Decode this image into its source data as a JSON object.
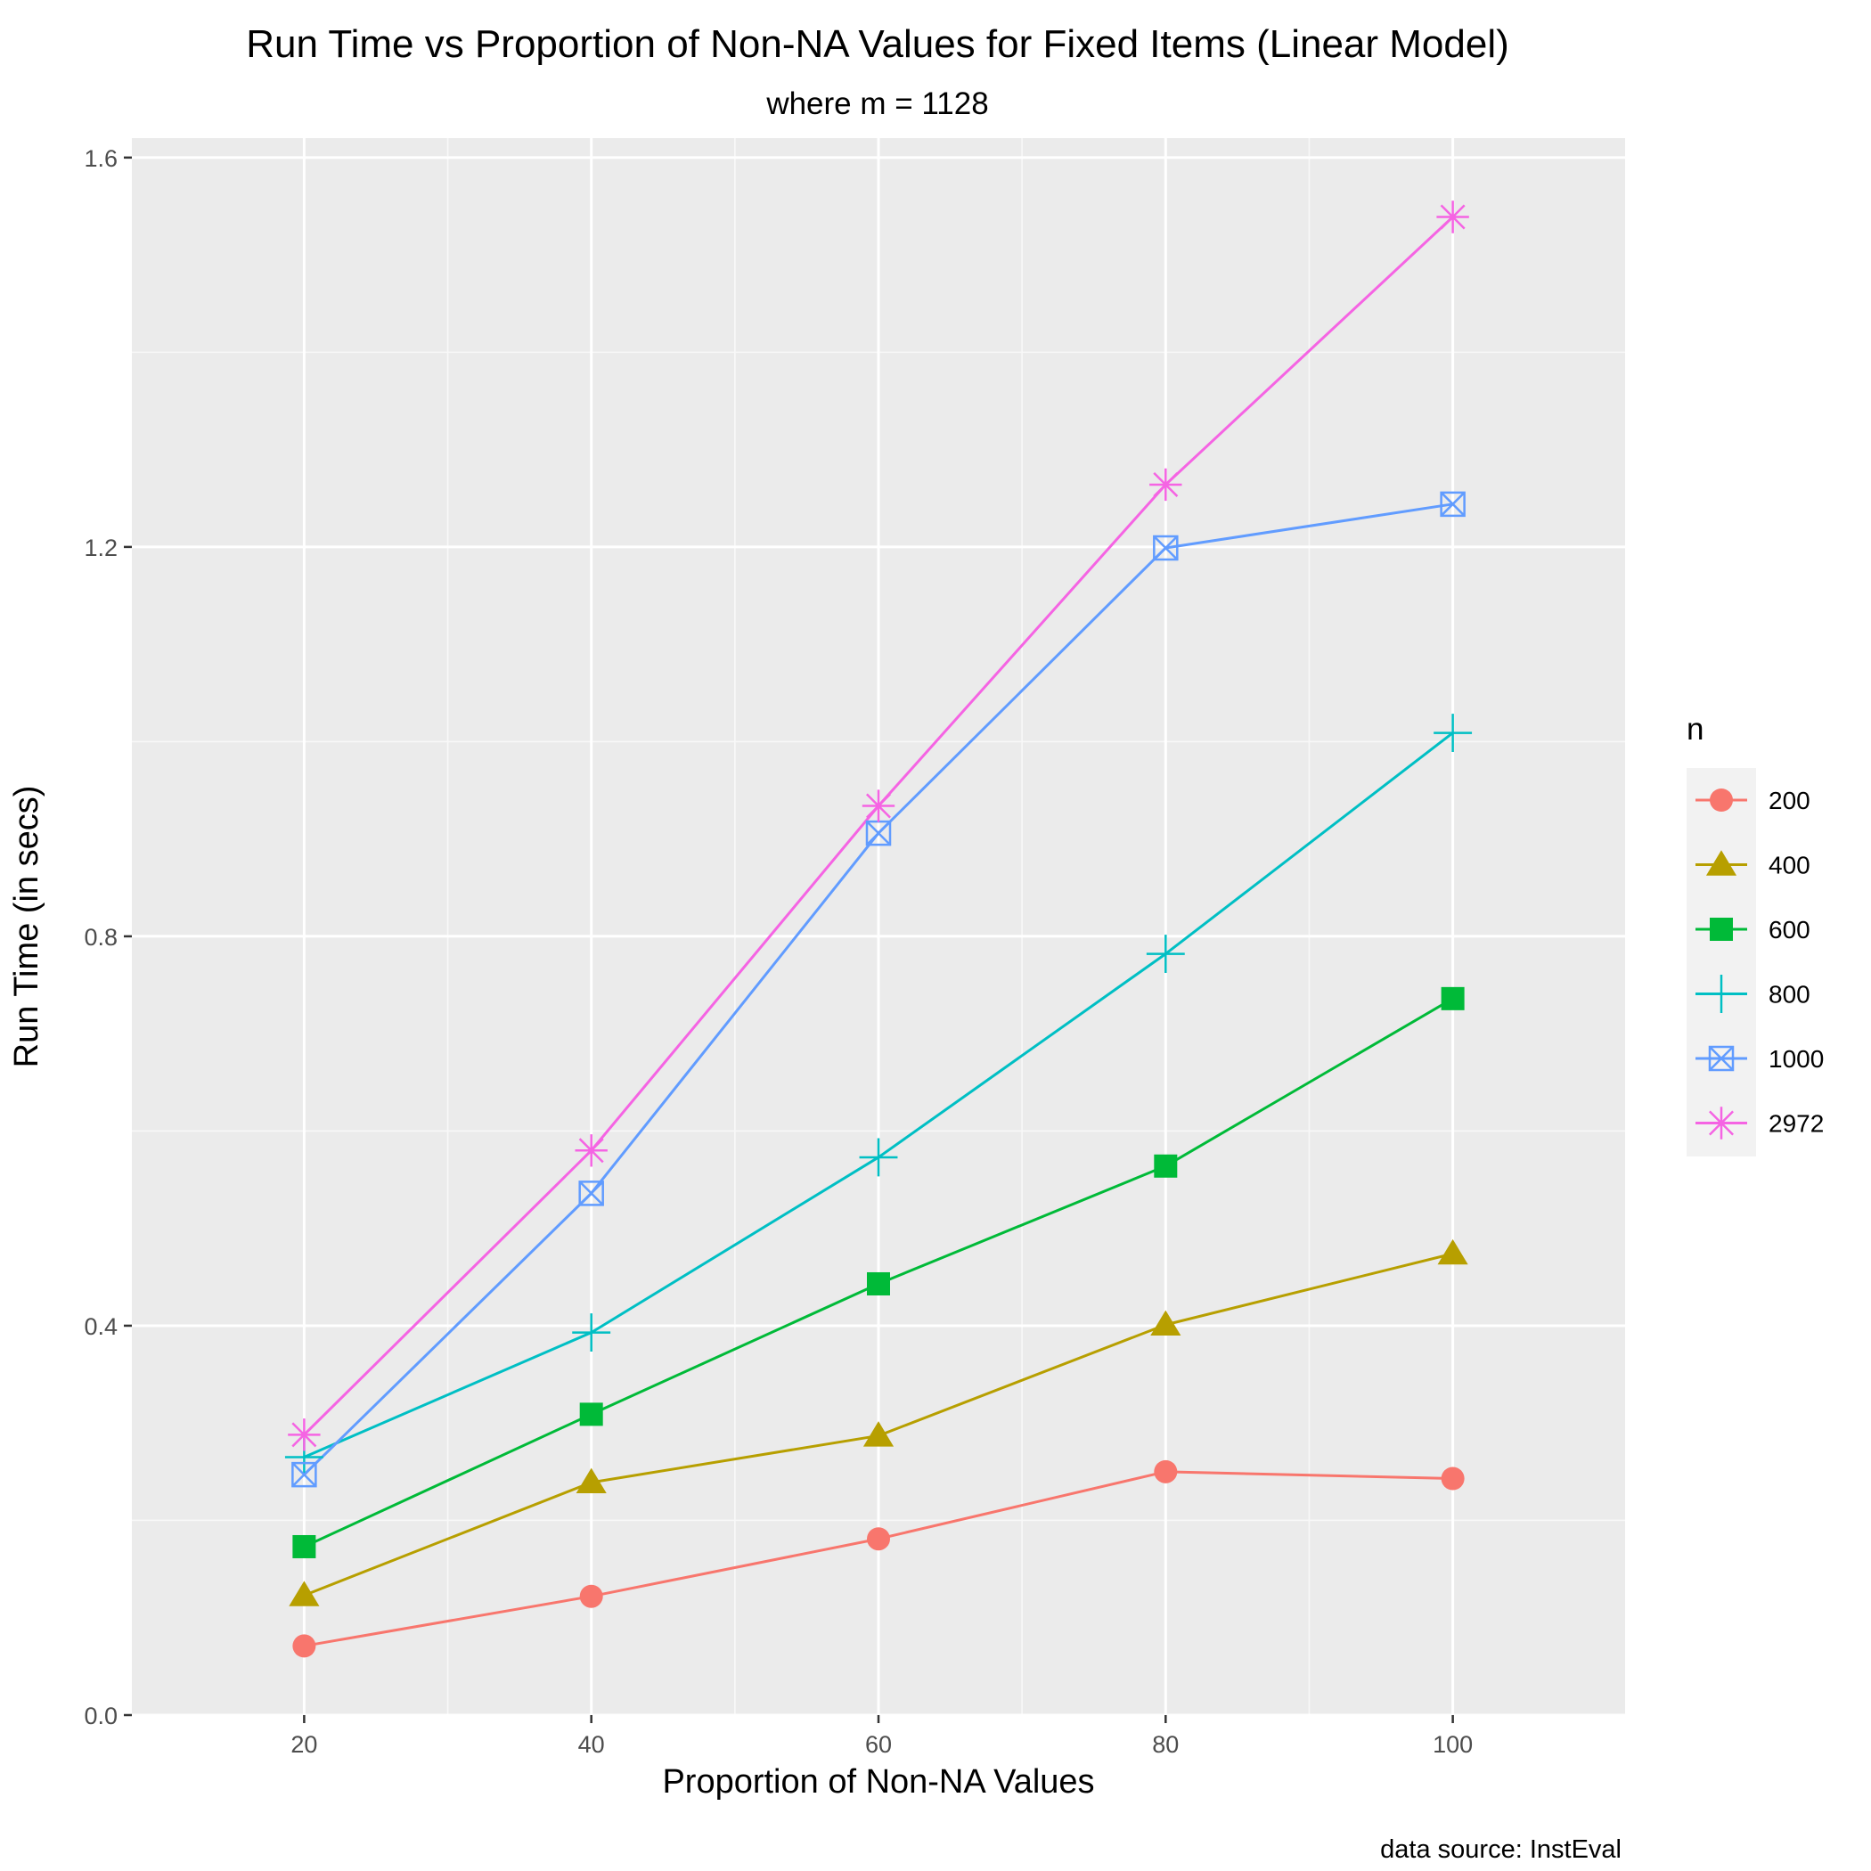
{
  "chart_data": {
    "type": "line",
    "title": "Run Time vs Proportion of Non-NA Values for Fixed Items (Linear Model)",
    "subtitle": "where m = 1128",
    "xlabel": "Proportion of Non-NA Values",
    "ylabel": "Run Time (in secs)",
    "caption": "data source: InstEval",
    "xlim": [
      8,
      112
    ],
    "ylim": [
      0,
      1.62
    ],
    "x_ticks": [
      20,
      40,
      60,
      80,
      100
    ],
    "x_tick_labels": [
      "20",
      "40",
      "60",
      "80",
      "100"
    ],
    "y_ticks": [
      0.0,
      0.4,
      0.8,
      1.2,
      1.6
    ],
    "y_tick_labels": [
      "0.0",
      "0.4",
      "0.8",
      "1.2",
      "1.6"
    ],
    "grid": true,
    "legend": {
      "title": "n",
      "position": "right"
    },
    "x": [
      20,
      40,
      60,
      80,
      100
    ],
    "series": [
      {
        "name": "200",
        "color": "#F8766D",
        "marker": "circle",
        "values": [
          0.071,
          0.122,
          0.181,
          0.25,
          0.243
        ]
      },
      {
        "name": "400",
        "color": "#B79F00",
        "marker": "triangle",
        "values": [
          0.123,
          0.239,
          0.287,
          0.401,
          0.474
        ]
      },
      {
        "name": "600",
        "color": "#00BA38",
        "marker": "square",
        "values": [
          0.173,
          0.309,
          0.443,
          0.564,
          0.736
        ]
      },
      {
        "name": "800",
        "color": "#00BFC4",
        "marker": "plus",
        "values": [
          0.265,
          0.393,
          0.573,
          0.782,
          1.009
        ]
      },
      {
        "name": "1000",
        "color": "#619CFF",
        "marker": "boxcross",
        "values": [
          0.247,
          0.536,
          0.906,
          1.199,
          1.244
        ]
      },
      {
        "name": "2972",
        "color": "#F564E3",
        "marker": "asterisk",
        "values": [
          0.288,
          0.58,
          0.934,
          1.264,
          1.539
        ]
      }
    ]
  }
}
